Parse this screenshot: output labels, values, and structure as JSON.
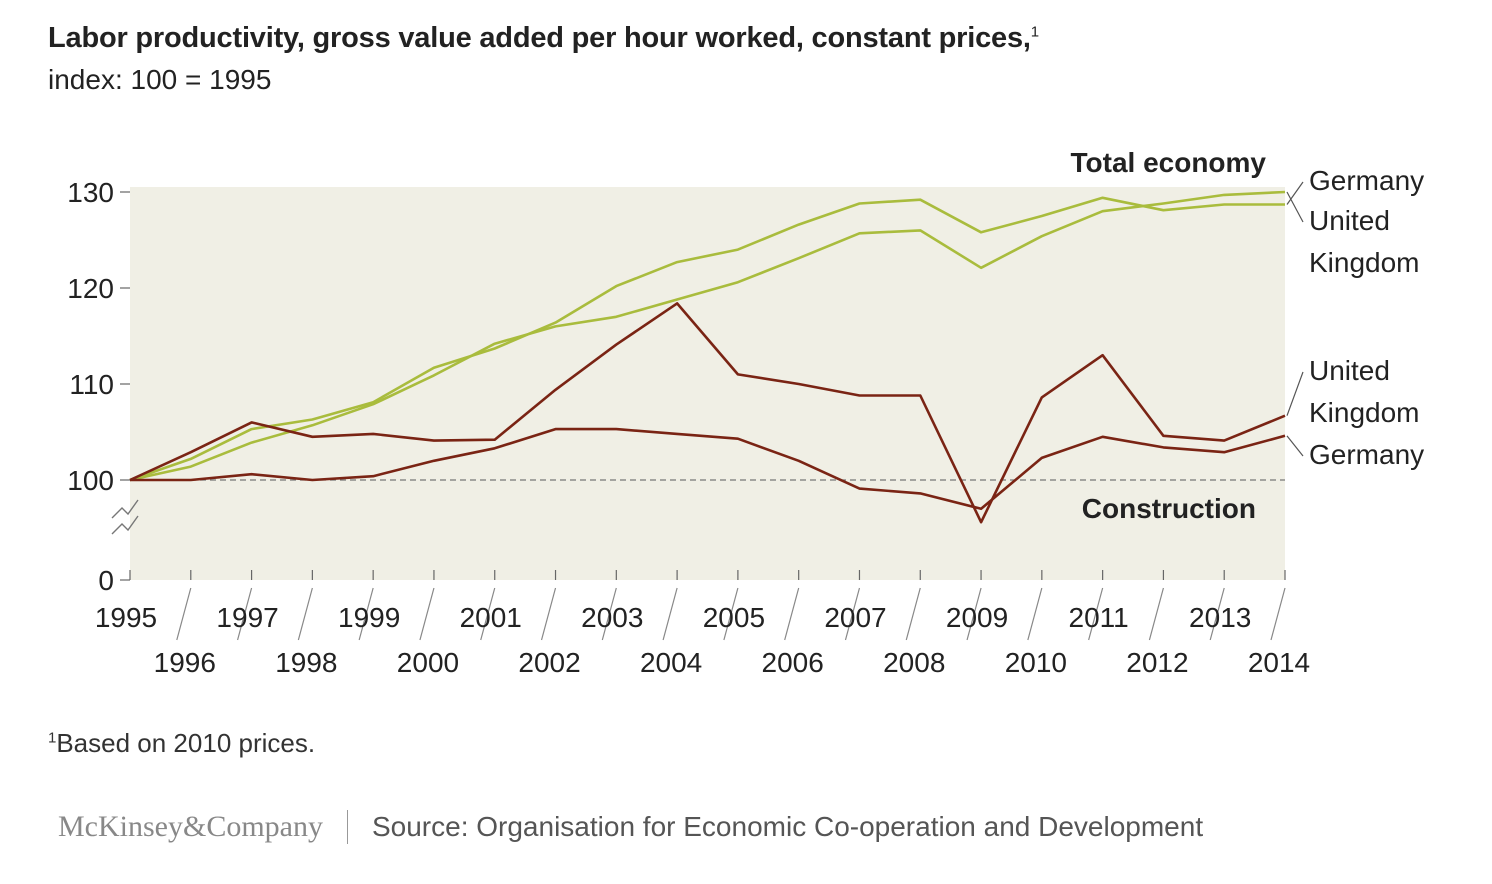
{
  "title": "Labor productivity, gross value added per hour worked, constant prices,",
  "title_footnote_marker": "1",
  "subtitle": "index: 100 = 1995",
  "footnote_marker": "1",
  "footnote": "Based on 2010 prices.",
  "footer": {
    "logo": "McKinsey&Company",
    "source": "Source: Organisation for Economic Co-operation and Development"
  },
  "colors": {
    "total_economy": "#a9bc3d",
    "construction": "#7a2414",
    "plot_background": "#f0efe5",
    "baseline": "#777777"
  },
  "chart_data": {
    "type": "line",
    "group_labels": {
      "total_economy": "Total economy",
      "construction": "Construction"
    },
    "x": [
      1995,
      1996,
      1997,
      1998,
      1999,
      2000,
      2001,
      2002,
      2003,
      2004,
      2005,
      2006,
      2007,
      2008,
      2009,
      2010,
      2011,
      2012,
      2013,
      2014
    ],
    "x_tick_labels": [
      "1995",
      "1996",
      "1997",
      "1998",
      "1999",
      "2000",
      "2001",
      "2002",
      "2003",
      "2004",
      "2005",
      "2006",
      "2007",
      "2008",
      "2009",
      "2010",
      "2011",
      "2012",
      "2013",
      "2014"
    ],
    "y_tick_labels": [
      "0",
      "100",
      "110",
      "120",
      "130"
    ],
    "y_axis_break": true,
    "ylim_upper": [
      95,
      131
    ],
    "baseline": 100,
    "grid": false,
    "series": [
      {
        "group": "total_economy",
        "name": "Germany",
        "values": [
          100,
          102.2,
          105.3,
          106.3,
          108.1,
          111.7,
          113.7,
          116.4,
          120.2,
          122.7,
          124.0,
          126.6,
          128.8,
          129.2,
          125.8,
          127.5,
          129.4,
          128.1,
          128.7,
          128.7
        ]
      },
      {
        "group": "total_economy",
        "name": "United Kingdom",
        "values": [
          100,
          101.4,
          103.9,
          105.7,
          107.9,
          110.9,
          114.2,
          116.0,
          117.0,
          118.8,
          120.6,
          123.1,
          125.7,
          126.0,
          122.1,
          125.4,
          128.0,
          128.8,
          129.7,
          130.0
        ]
      },
      {
        "group": "construction",
        "name": "United Kingdom",
        "values": [
          100,
          102.9,
          106.0,
          104.5,
          104.8,
          104.1,
          104.2,
          109.4,
          114.1,
          118.4,
          111.0,
          110.0,
          108.8,
          108.8,
          95.6,
          108.6,
          113.0,
          104.6,
          104.1,
          106.7
        ]
      },
      {
        "group": "construction",
        "name": "Germany",
        "values": [
          100,
          100.0,
          100.6,
          100.0,
          100.4,
          102.0,
          103.3,
          105.3,
          105.3,
          104.8,
          104.3,
          102.0,
          99.1,
          98.6,
          97.0,
          102.3,
          104.5,
          103.4,
          102.9,
          104.6
        ]
      }
    ],
    "end_labels": [
      {
        "series_index": 0,
        "lines": [
          "Germany"
        ]
      },
      {
        "series_index": 1,
        "lines": [
          "United",
          "Kingdom"
        ]
      },
      {
        "series_index": 2,
        "lines": [
          "United",
          "Kingdom"
        ]
      },
      {
        "series_index": 3,
        "lines": [
          "Germany"
        ]
      }
    ]
  }
}
